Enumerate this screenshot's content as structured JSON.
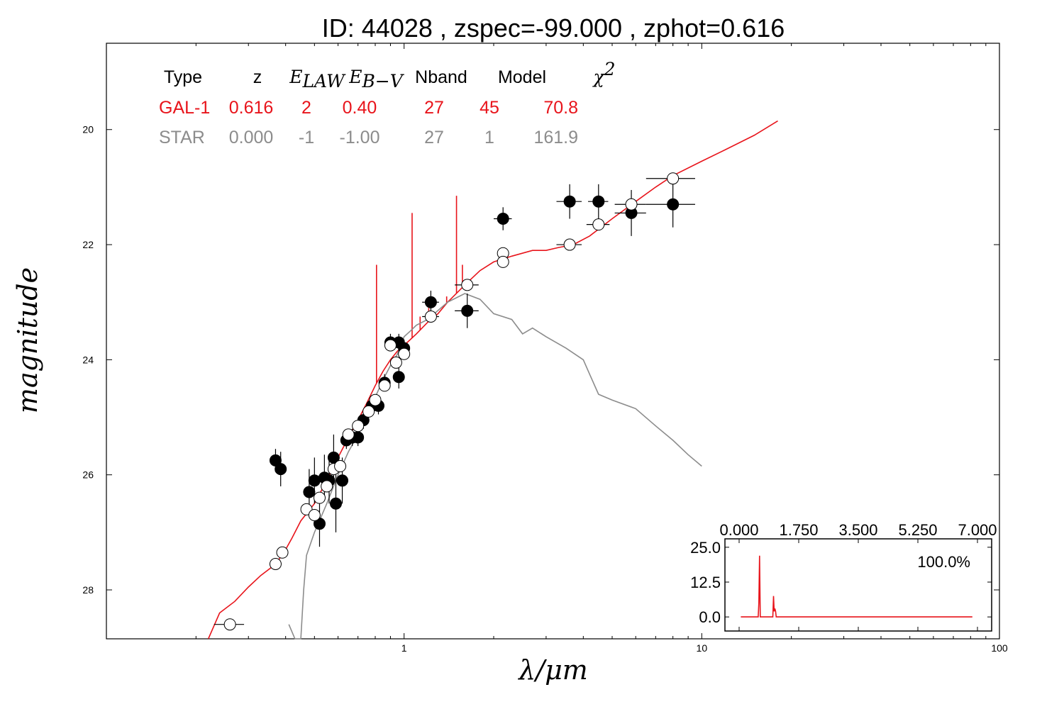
{
  "title": "ID:  44028 , zspec=-99.000 , zphot=0.616",
  "colors": {
    "galaxy": "#e8141b",
    "star": "#8c8c8c",
    "axis": "#000000"
  },
  "chart_data": {
    "type": "scatter",
    "xlabel": "λ/μm",
    "ylabel": "magnitude",
    "xscale": "log",
    "xlim": [
      0.1,
      100
    ],
    "ylim": [
      28.85,
      18.5
    ],
    "y_inverted": true,
    "xticks": [
      {
        "v": 1,
        "label": "1"
      },
      {
        "v": 10,
        "label": "10"
      },
      {
        "v": 100,
        "label": "100"
      }
    ],
    "yticks": [
      {
        "v": 20,
        "label": "20"
      },
      {
        "v": 22,
        "label": "22"
      },
      {
        "v": 24,
        "label": "24"
      },
      {
        "v": 26,
        "label": "26"
      },
      {
        "v": 28,
        "label": "28"
      }
    ],
    "grid": false,
    "table": {
      "headers": [
        "Type",
        "z",
        "E_LAW",
        "E_B−V",
        "Nband",
        "Model",
        "χ2"
      ],
      "rows": [
        {
          "type": "GAL-1",
          "z": "0.616",
          "elaw": "2",
          "ebv": "0.40",
          "nband": "27",
          "model": "45",
          "chi2": "70.8",
          "color": "#e8141b"
        },
        {
          "type": "STAR",
          "z": "0.000",
          "elaw": "-1",
          "ebv": "-1.00",
          "nband": "27",
          "model": "1",
          "chi2": "161.9",
          "color": "#8c8c8c"
        }
      ]
    },
    "series": [
      {
        "name": "GAL-1",
        "kind": "line",
        "color": "#e8141b",
        "points": [
          [
            0.22,
            28.85
          ],
          [
            0.24,
            28.4
          ],
          [
            0.27,
            28.2
          ],
          [
            0.3,
            27.95
          ],
          [
            0.33,
            27.75
          ],
          [
            0.36,
            27.6
          ],
          [
            0.39,
            27.4
          ],
          [
            0.42,
            27.1
          ],
          [
            0.45,
            26.8
          ],
          [
            0.5,
            26.5
          ],
          [
            0.55,
            26.1
          ],
          [
            0.6,
            25.7
          ],
          [
            0.65,
            25.35
          ],
          [
            0.7,
            25.05
          ],
          [
            0.75,
            24.75
          ],
          [
            0.8,
            24.45
          ],
          [
            0.85,
            24.2
          ],
          [
            0.9,
            24.0
          ],
          [
            0.95,
            23.85
          ],
          [
            1.0,
            23.75
          ],
          [
            1.1,
            23.55
          ],
          [
            1.2,
            23.35
          ],
          [
            1.3,
            23.2
          ],
          [
            1.4,
            23.0
          ],
          [
            1.6,
            22.7
          ],
          [
            1.8,
            22.45
          ],
          [
            2.0,
            22.3
          ],
          [
            2.3,
            22.2
          ],
          [
            2.7,
            22.1
          ],
          [
            3.0,
            22.1
          ],
          [
            3.3,
            22.05
          ],
          [
            3.7,
            22.0
          ],
          [
            4.2,
            21.85
          ],
          [
            5.0,
            21.55
          ],
          [
            6.0,
            21.25
          ],
          [
            7.0,
            21.0
          ],
          [
            8.0,
            20.8
          ],
          [
            10.0,
            20.55
          ],
          [
            12.0,
            20.35
          ],
          [
            15.0,
            20.1
          ],
          [
            18.0,
            19.85
          ]
        ]
      },
      {
        "name": "GAL-1 emission lines",
        "kind": "spikes",
        "color": "#e8141b",
        "spikes": [
          [
            0.808,
            22.35
          ],
          [
            1.064,
            21.45
          ],
          [
            1.132,
            23.25
          ],
          [
            1.21,
            23.1
          ],
          [
            1.39,
            22.9
          ],
          [
            1.5,
            21.15
          ],
          [
            1.57,
            22.35
          ]
        ]
      },
      {
        "name": "STAR",
        "kind": "line",
        "color": "#8c8c8c",
        "points": [
          [
            0.41,
            28.6
          ],
          [
            0.43,
            28.85
          ],
          [
            0.45,
            28.85
          ],
          [
            0.46,
            28.0
          ],
          [
            0.47,
            27.4
          ],
          [
            0.5,
            27.0
          ],
          [
            0.55,
            26.5
          ],
          [
            0.6,
            26.0
          ],
          [
            0.65,
            25.6
          ],
          [
            0.7,
            25.3
          ],
          [
            0.75,
            24.95
          ],
          [
            0.8,
            24.65
          ],
          [
            0.85,
            24.35
          ],
          [
            0.9,
            24.1
          ],
          [
            0.95,
            23.9
          ],
          [
            1.0,
            23.6
          ],
          [
            1.05,
            23.5
          ],
          [
            1.1,
            23.4
          ],
          [
            1.2,
            23.3
          ],
          [
            1.4,
            23.0
          ],
          [
            1.6,
            22.85
          ],
          [
            1.8,
            22.95
          ],
          [
            2.0,
            23.2
          ],
          [
            2.3,
            23.3
          ],
          [
            2.5,
            23.55
          ],
          [
            2.7,
            23.45
          ],
          [
            3.0,
            23.6
          ],
          [
            3.5,
            23.8
          ],
          [
            4.0,
            24.0
          ],
          [
            4.2,
            24.25
          ],
          [
            4.5,
            24.6
          ],
          [
            5.0,
            24.7
          ],
          [
            6.0,
            24.85
          ],
          [
            7.0,
            25.15
          ],
          [
            8.0,
            25.4
          ],
          [
            9.0,
            25.65
          ],
          [
            10.0,
            25.85
          ]
        ]
      },
      {
        "name": "observed",
        "kind": "points",
        "filled": true,
        "color": "#000000",
        "points": [
          {
            "x": 0.37,
            "y": 25.75,
            "xe": 0.012,
            "ye": 0.2
          },
          {
            "x": 0.385,
            "y": 25.9,
            "xe": 0.012,
            "ye": 0.3
          },
          {
            "x": 0.48,
            "y": 26.3,
            "xe": 0.02,
            "ye": 0.4
          },
          {
            "x": 0.5,
            "y": 26.1,
            "xe": 0.02,
            "ye": 0.4
          },
          {
            "x": 0.52,
            "y": 26.85,
            "xe": 0.02,
            "ye": 0.4
          },
          {
            "x": 0.54,
            "y": 26.05,
            "xe": 0.02,
            "ye": 0.4
          },
          {
            "x": 0.56,
            "y": 26.1,
            "xe": 0.02,
            "ye": 0.4
          },
          {
            "x": 0.58,
            "y": 25.7,
            "xe": 0.02,
            "ye": 0.4
          },
          {
            "x": 0.59,
            "y": 26.5,
            "xe": 0.02,
            "ye": 0.5
          },
          {
            "x": 0.62,
            "y": 26.1,
            "xe": 0.02,
            "ye": 0.4
          },
          {
            "x": 0.64,
            "y": 25.4,
            "xe": 0.02,
            "ye": 0.15
          },
          {
            "x": 0.67,
            "y": 25.35,
            "xe": 0.02,
            "ye": 0.15
          },
          {
            "x": 0.7,
            "y": 25.35,
            "xe": 0.02,
            "ye": 0.15
          },
          {
            "x": 0.73,
            "y": 25.05,
            "xe": 0.02,
            "ye": 0.15
          },
          {
            "x": 0.78,
            "y": 24.8,
            "xe": 0.02,
            "ye": 0.15
          },
          {
            "x": 0.82,
            "y": 24.8,
            "xe": 0.02,
            "ye": 0.15
          },
          {
            "x": 0.86,
            "y": 24.4,
            "xe": 0.02,
            "ye": 0.15
          },
          {
            "x": 0.9,
            "y": 23.7,
            "xe": 0.02,
            "ye": 0.15
          },
          {
            "x": 0.96,
            "y": 24.3,
            "xe": 0.02,
            "ye": 0.2
          },
          {
            "x": 0.96,
            "y": 23.7,
            "xe": 0.02,
            "ye": 0.15
          },
          {
            "x": 1.0,
            "y": 23.8,
            "xe": 0.03,
            "ye": 0.15
          },
          {
            "x": 1.23,
            "y": 23.0,
            "xe": 0.08,
            "ye": 0.2
          },
          {
            "x": 1.63,
            "y": 23.15,
            "xe": 0.15,
            "ye": 0.3
          },
          {
            "x": 2.15,
            "y": 21.55,
            "xe": 0.15,
            "ye": 0.2
          },
          {
            "x": 3.6,
            "y": 21.25,
            "xe": 0.35,
            "ye": 0.3
          },
          {
            "x": 4.5,
            "y": 21.25,
            "xe": 0.35,
            "ye": 0.3
          },
          {
            "x": 5.8,
            "y": 21.45,
            "xe": 0.7,
            "ye": 0.4
          },
          {
            "x": 8.0,
            "y": 21.3,
            "xe": 1.5,
            "ye": 0.4
          }
        ]
      },
      {
        "name": "model",
        "kind": "points",
        "filled": false,
        "color": "#000000",
        "points": [
          {
            "x": 0.26,
            "y": 28.6,
            "xe": 0.03,
            "ye": 0
          },
          {
            "x": 0.37,
            "y": 27.55,
            "xe": 0.015,
            "ye": 0
          },
          {
            "x": 0.39,
            "y": 27.35,
            "xe": 0.015,
            "ye": 0
          },
          {
            "x": 0.47,
            "y": 26.6,
            "xe": 0,
            "ye": 0
          },
          {
            "x": 0.5,
            "y": 26.7,
            "xe": 0,
            "ye": 0
          },
          {
            "x": 0.52,
            "y": 26.4,
            "xe": 0,
            "ye": 0
          },
          {
            "x": 0.55,
            "y": 26.2,
            "xe": 0,
            "ye": 0
          },
          {
            "x": 0.58,
            "y": 25.9,
            "xe": 0,
            "ye": 0
          },
          {
            "x": 0.61,
            "y": 25.85,
            "xe": 0,
            "ye": 0
          },
          {
            "x": 0.65,
            "y": 25.3,
            "xe": 0,
            "ye": 0
          },
          {
            "x": 0.7,
            "y": 25.15,
            "xe": 0,
            "ye": 0
          },
          {
            "x": 0.76,
            "y": 24.9,
            "xe": 0,
            "ye": 0
          },
          {
            "x": 0.8,
            "y": 24.7,
            "xe": 0,
            "ye": 0
          },
          {
            "x": 0.86,
            "y": 24.45,
            "xe": 0,
            "ye": 0
          },
          {
            "x": 0.9,
            "y": 23.75,
            "xe": 0,
            "ye": 0
          },
          {
            "x": 0.94,
            "y": 24.05,
            "xe": 0,
            "ye": 0
          },
          {
            "x": 1.0,
            "y": 23.9,
            "xe": 0,
            "ye": 0
          },
          {
            "x": 1.23,
            "y": 23.25,
            "xe": 0.08,
            "ye": 0
          },
          {
            "x": 1.63,
            "y": 22.7,
            "xe": 0.15,
            "ye": 0
          },
          {
            "x": 2.15,
            "y": 22.15,
            "xe": 0,
            "ye": 0
          },
          {
            "x": 2.15,
            "y": 22.3,
            "xe": 0,
            "ye": 0
          },
          {
            "x": 3.6,
            "y": 22.0,
            "xe": 0.35,
            "ye": 0
          },
          {
            "x": 4.5,
            "y": 21.65,
            "xe": 0.4,
            "ye": 0
          },
          {
            "x": 5.8,
            "y": 21.3,
            "xe": 0.7,
            "ye": 0
          },
          {
            "x": 8.0,
            "y": 20.85,
            "xe": 1.5,
            "ye": 0
          }
        ]
      }
    ],
    "inset": {
      "type": "line",
      "label": "100.0%",
      "color": "#e8141b",
      "xlim": [
        0,
        7
      ],
      "ylim": [
        -2,
        27
      ],
      "xticks": [
        "0.000",
        "1.750",
        "3.500",
        "5.250",
        "7.000"
      ],
      "yticks": [
        "25.0",
        "12.5",
        "0.0"
      ],
      "points": [
        [
          0.05,
          0
        ],
        [
          0.56,
          0
        ],
        [
          0.58,
          5
        ],
        [
          0.6,
          22
        ],
        [
          0.62,
          0
        ],
        [
          0.8,
          0
        ],
        [
          0.99,
          0
        ],
        [
          1.01,
          7.5
        ],
        [
          1.03,
          2
        ],
        [
          1.05,
          3
        ],
        [
          1.07,
          2
        ],
        [
          1.09,
          0
        ],
        [
          6.85,
          0
        ]
      ]
    }
  }
}
